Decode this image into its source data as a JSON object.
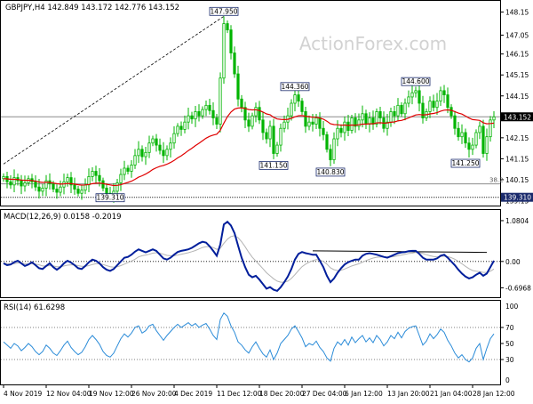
{
  "chart_data": [
    {
      "type": "candlestick",
      "panel": "price",
      "title": "GBPJPY,H4  142.849 143.172 142.776 143.152",
      "watermark": "ActionForex.com",
      "ylim": [
        139.0,
        148.6
      ],
      "y_ticks": [
        "148.15",
        "147.05",
        "146.15",
        "145.15",
        "144.15",
        "143.15",
        "142.15",
        "141.15",
        "140.15",
        "139.15"
      ],
      "y_tick_values": [
        148.15,
        147.05,
        146.15,
        145.15,
        144.15,
        143.15,
        142.15,
        141.15,
        140.15,
        139.15
      ],
      "last_price_label": "143.152",
      "last_price": 143.152,
      "level_label": "139.310",
      "level_value": 139.31,
      "fib_label": "38.2",
      "fib_value": 139.95,
      "annotations": [
        {
          "label": "147.950",
          "value": 147.95,
          "x_index": 62
        },
        {
          "label": "144.360",
          "value": 144.36,
          "x_index": 82
        },
        {
          "label": "144.600",
          "value": 144.6,
          "x_index": 116
        },
        {
          "label": "141.150",
          "value": 141.15,
          "x_index": 76
        },
        {
          "label": "140.830",
          "value": 140.83,
          "x_index": 92
        },
        {
          "label": "141.250",
          "value": 141.25,
          "x_index": 130
        },
        {
          "label": "139.310",
          "value": 139.31,
          "x_index": 30
        }
      ],
      "series": [
        {
          "name": "Close",
          "color": "#00b400"
        },
        {
          "name": "MA",
          "color": "#e00000"
        }
      ],
      "grid": false
    },
    {
      "type": "line",
      "panel": "macd",
      "title": "MACD(12,26,9) 0.0158 -0.2019",
      "ylim": [
        -0.9,
        1.15
      ],
      "y_ticks": [
        "1.0804",
        "0.00",
        "-0.6968"
      ],
      "y_tick_values": [
        1.0804,
        0.0,
        -0.6968
      ],
      "zero_label": "0.00",
      "series": [
        {
          "name": "MACD",
          "color": "#001e9b"
        },
        {
          "name": "Signal",
          "color": "#b4b4b4"
        }
      ]
    },
    {
      "type": "line",
      "panel": "rsi",
      "title": "RSI(14) 61.6298",
      "ylim": [
        0,
        100
      ],
      "y_ticks": [
        "100",
        "70",
        "50",
        "30",
        "0"
      ],
      "y_tick_values": [
        100,
        70,
        50,
        30,
        0
      ],
      "series": [
        {
          "name": "RSI",
          "color": "#2a8bd8"
        }
      ]
    }
  ],
  "x_axis": {
    "labels": [
      "4 Nov 2019",
      "12 Nov 04:00",
      "19 Nov 12:00",
      "26 Nov 20:00",
      "4 Dec 2019",
      "11 Dec 12:00",
      "18 Dec 20:00",
      "27 Dec 04:00",
      "6 Jan 12:00",
      "13 Jan 20:00",
      "21 Jan 04:00",
      "28 Jan 12:00"
    ],
    "label_positions": [
      0,
      12,
      24,
      36,
      48,
      60,
      72,
      84,
      96,
      108,
      120,
      132
    ]
  },
  "closes": [
    140.3,
    140.05,
    139.9,
    140.25,
    140.1,
    139.85,
    140.0,
    140.2,
    140.05,
    139.8,
    139.6,
    139.75,
    140.1,
    139.95,
    139.7,
    139.55,
    139.8,
    140.05,
    140.25,
    139.9,
    139.7,
    139.5,
    139.65,
    139.9,
    140.3,
    140.55,
    140.35,
    140.1,
    139.75,
    139.5,
    139.4,
    139.6,
    140.0,
    140.4,
    140.7,
    140.55,
    140.85,
    141.3,
    141.6,
    141.25,
    141.45,
    141.9,
    142.1,
    141.8,
    141.55,
    141.3,
    141.6,
    141.9,
    142.35,
    142.7,
    142.55,
    142.9,
    143.2,
    143.05,
    143.4,
    143.2,
    143.5,
    143.7,
    143.45,
    143.1,
    142.8,
    145.0,
    147.6,
    147.3,
    146.2,
    145.2,
    144.0,
    143.6,
    143.0,
    142.7,
    143.2,
    143.6,
    143.0,
    142.4,
    142.1,
    142.7,
    141.4,
    141.8,
    142.6,
    142.9,
    143.2,
    143.8,
    144.2,
    143.9,
    143.4,
    142.7,
    142.9,
    142.8,
    143.1,
    142.6,
    142.3,
    141.6,
    141.1,
    142.1,
    142.6,
    142.4,
    142.9,
    142.5,
    143.1,
    142.7,
    143.0,
    143.3,
    142.8,
    143.1,
    142.8,
    143.4,
    143.1,
    142.6,
    142.9,
    143.4,
    143.2,
    143.7,
    143.3,
    143.8,
    144.1,
    144.3,
    144.4,
    143.8,
    143.1,
    143.4,
    143.9,
    143.6,
    143.9,
    144.4,
    144.2,
    143.6,
    143.2,
    142.6,
    142.2,
    142.4,
    141.9,
    141.6,
    141.8,
    142.4,
    142.7,
    141.4,
    142.2,
    143.0,
    143.15
  ],
  "macd": [
    -0.05,
    -0.1,
    -0.08,
    -0.02,
    0.02,
    -0.05,
    -0.12,
    -0.08,
    -0.02,
    -0.1,
    -0.18,
    -0.2,
    -0.12,
    -0.05,
    -0.15,
    -0.22,
    -0.15,
    -0.05,
    0.02,
    -0.03,
    -0.1,
    -0.18,
    -0.2,
    -0.12,
    -0.02,
    0.05,
    0.02,
    -0.05,
    -0.15,
    -0.22,
    -0.25,
    -0.2,
    -0.1,
    0.0,
    0.1,
    0.12,
    0.18,
    0.26,
    0.32,
    0.28,
    0.24,
    0.28,
    0.32,
    0.28,
    0.18,
    0.08,
    0.05,
    0.1,
    0.18,
    0.25,
    0.28,
    0.3,
    0.32,
    0.36,
    0.42,
    0.48,
    0.52,
    0.5,
    0.4,
    0.28,
    0.15,
    0.45,
    0.98,
    1.05,
    0.95,
    0.75,
    0.42,
    0.1,
    -0.15,
    -0.35,
    -0.42,
    -0.38,
    -0.48,
    -0.6,
    -0.72,
    -0.68,
    -0.75,
    -0.78,
    -0.68,
    -0.55,
    -0.4,
    -0.2,
    0.05,
    0.2,
    0.25,
    0.22,
    0.2,
    0.18,
    0.18,
    0.02,
    -0.15,
    -0.38,
    -0.55,
    -0.45,
    -0.3,
    -0.18,
    -0.08,
    -0.02,
    0.02,
    0.05,
    0.05,
    0.15,
    0.2,
    0.22,
    0.2,
    0.18,
    0.15,
    0.12,
    0.1,
    0.14,
    0.18,
    0.22,
    0.24,
    0.25,
    0.27,
    0.28,
    0.28,
    0.2,
    0.1,
    0.05,
    0.05,
    0.05,
    0.08,
    0.15,
    0.18,
    0.1,
    0.0,
    -0.1,
    -0.22,
    -0.32,
    -0.4,
    -0.45,
    -0.42,
    -0.35,
    -0.3,
    -0.38,
    -0.32,
    -0.15,
    0.02
  ],
  "signal": [
    -0.04,
    -0.06,
    -0.07,
    -0.06,
    -0.04,
    -0.04,
    -0.06,
    -0.07,
    -0.06,
    -0.07,
    -0.09,
    -0.12,
    -0.12,
    -0.11,
    -0.12,
    -0.14,
    -0.14,
    -0.12,
    -0.1,
    -0.09,
    -0.09,
    -0.11,
    -0.13,
    -0.13,
    -0.11,
    -0.08,
    -0.06,
    -0.06,
    -0.08,
    -0.11,
    -0.14,
    -0.15,
    -0.14,
    -0.11,
    -0.07,
    -0.03,
    0.01,
    0.06,
    0.12,
    0.15,
    0.17,
    0.19,
    0.22,
    0.23,
    0.22,
    0.19,
    0.16,
    0.15,
    0.15,
    0.17,
    0.19,
    0.21,
    0.23,
    0.26,
    0.29,
    0.33,
    0.37,
    0.39,
    0.39,
    0.37,
    0.32,
    0.35,
    0.48,
    0.59,
    0.66,
    0.68,
    0.63,
    0.52,
    0.39,
    0.24,
    0.11,
    0.01,
    -0.09,
    -0.19,
    -0.3,
    -0.38,
    -0.46,
    -0.52,
    -0.55,
    -0.55,
    -0.52,
    -0.45,
    -0.35,
    -0.24,
    -0.14,
    -0.07,
    -0.02,
    0.02,
    0.05,
    0.04,
    0.0,
    -0.07,
    -0.17,
    -0.22,
    -0.24,
    -0.23,
    -0.2,
    -0.16,
    -0.12,
    -0.09,
    -0.06,
    -0.02,
    0.02,
    0.06,
    0.09,
    0.11,
    0.12,
    0.12,
    0.12,
    0.12,
    0.13,
    0.15,
    0.17,
    0.19,
    0.21,
    0.22,
    0.24,
    0.23,
    0.21,
    0.18,
    0.15,
    0.13,
    0.12,
    0.13,
    0.14,
    0.13,
    0.1,
    0.06,
    0.0,
    -0.06,
    -0.13,
    -0.19,
    -0.24,
    -0.26,
    -0.27,
    -0.29,
    -0.29,
    -0.26,
    -0.2
  ],
  "rsi": [
    52,
    48,
    44,
    50,
    47,
    41,
    45,
    50,
    46,
    40,
    36,
    40,
    48,
    44,
    38,
    35,
    41,
    48,
    53,
    45,
    40,
    36,
    39,
    46,
    55,
    60,
    55,
    49,
    40,
    35,
    33,
    38,
    47,
    56,
    62,
    58,
    63,
    70,
    72,
    63,
    66,
    72,
    74,
    66,
    60,
    54,
    60,
    65,
    70,
    74,
    70,
    73,
    76,
    72,
    75,
    70,
    73,
    75,
    68,
    60,
    55,
    80,
    88,
    84,
    72,
    64,
    52,
    48,
    42,
    38,
    46,
    52,
    44,
    37,
    33,
    42,
    30,
    38,
    50,
    55,
    60,
    68,
    72,
    65,
    57,
    46,
    50,
    48,
    53,
    45,
    40,
    32,
    28,
    44,
    52,
    48,
    55,
    48,
    58,
    51,
    56,
    60,
    52,
    57,
    51,
    60,
    55,
    47,
    52,
    60,
    56,
    64,
    57,
    65,
    69,
    71,
    72,
    60,
    48,
    53,
    62,
    56,
    61,
    68,
    64,
    54,
    47,
    38,
    32,
    36,
    30,
    27,
    32,
    44,
    50,
    30,
    44,
    56,
    62
  ],
  "ma": [
    140.2,
    140.19,
    140.17,
    140.17,
    140.16,
    140.13,
    140.12,
    140.12,
    140.11,
    140.08,
    140.04,
    140.02,
    140.03,
    140.02,
    139.99,
    139.96,
    139.94,
    139.95,
    139.97,
    139.96,
    139.94,
    139.91,
    139.89,
    139.9,
    139.92,
    139.96,
    139.98,
    139.99,
    139.97,
    139.93,
    139.9,
    139.87,
    139.88,
    139.91,
    139.97,
    140.02,
    140.08,
    140.17,
    140.27,
    140.34,
    140.42,
    140.52,
    140.64,
    140.72,
    140.79,
    140.83,
    140.89,
    140.97,
    141.07,
    141.19,
    141.29,
    141.41,
    141.54,
    141.65,
    141.78,
    141.89,
    142.01,
    142.13,
    142.22,
    142.28,
    142.32,
    142.51,
    142.85,
    143.16,
    143.38,
    143.52,
    143.57,
    143.58,
    143.55,
    143.5,
    143.48,
    143.49,
    143.45,
    143.38,
    143.29,
    143.25,
    143.13,
    143.05,
    143.03,
    143.02,
    143.03,
    143.08,
    143.15,
    143.2,
    143.21,
    143.18,
    143.16,
    143.13,
    143.13,
    143.09,
    143.04,
    142.94,
    142.82,
    142.78,
    142.77,
    142.75,
    142.76,
    142.74,
    142.76,
    142.75,
    142.77,
    142.8,
    142.8,
    142.82,
    142.82,
    142.86,
    142.87,
    142.85,
    142.86,
    142.89,
    142.91,
    142.96,
    142.98,
    143.03,
    143.1,
    143.17,
    143.24,
    143.26,
    143.24,
    143.25,
    143.29,
    143.31,
    143.35,
    143.42,
    143.47,
    143.48,
    143.46,
    143.4,
    143.33,
    143.28,
    143.19,
    143.09,
    143.02,
    143.0,
    142.98,
    142.87,
    142.82,
    142.83,
    142.85
  ]
}
